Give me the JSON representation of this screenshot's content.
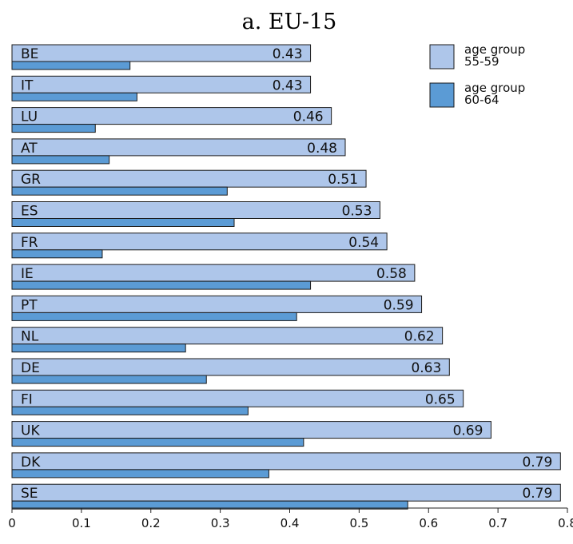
{
  "chart_data": {
    "type": "bar",
    "orientation": "horizontal",
    "title": "a. EU-15",
    "xlabel": "",
    "ylabel": "",
    "xlim": [
      0,
      0.8
    ],
    "ticks": [
      "0",
      "0.1",
      "0.2",
      "0.3",
      "0.4",
      "0.5",
      "0.6",
      "0.7",
      "0.8"
    ],
    "grid": false,
    "legend_position": "top-right",
    "categories": [
      "BE",
      "IT",
      "LU",
      "AT",
      "GR",
      "ES",
      "FR",
      "IE",
      "PT",
      "NL",
      "DE",
      "FI",
      "UK",
      "DK",
      "SE"
    ],
    "series": [
      {
        "name": "age group 55-59",
        "legend_lines": [
          "age group",
          "55-59"
        ],
        "color": "#aec6ea",
        "values": [
          0.43,
          0.43,
          0.46,
          0.48,
          0.51,
          0.53,
          0.54,
          0.58,
          0.59,
          0.62,
          0.63,
          0.65,
          0.69,
          0.79,
          0.79
        ],
        "value_labels": [
          "0.43",
          "0.43",
          "0.46",
          "0.48",
          "0.51",
          "0.53",
          "0.54",
          "0.58",
          "0.59",
          "0.62",
          "0.63",
          "0.65",
          "0.69",
          "0.79",
          "0.79"
        ]
      },
      {
        "name": "age group 60-64",
        "legend_lines": [
          "age group",
          "60-64"
        ],
        "color": "#5b9bd5",
        "values": [
          0.17,
          0.18,
          0.12,
          0.14,
          0.31,
          0.32,
          0.13,
          0.43,
          0.41,
          0.25,
          0.28,
          0.34,
          0.42,
          0.37,
          0.57
        ]
      }
    ]
  }
}
